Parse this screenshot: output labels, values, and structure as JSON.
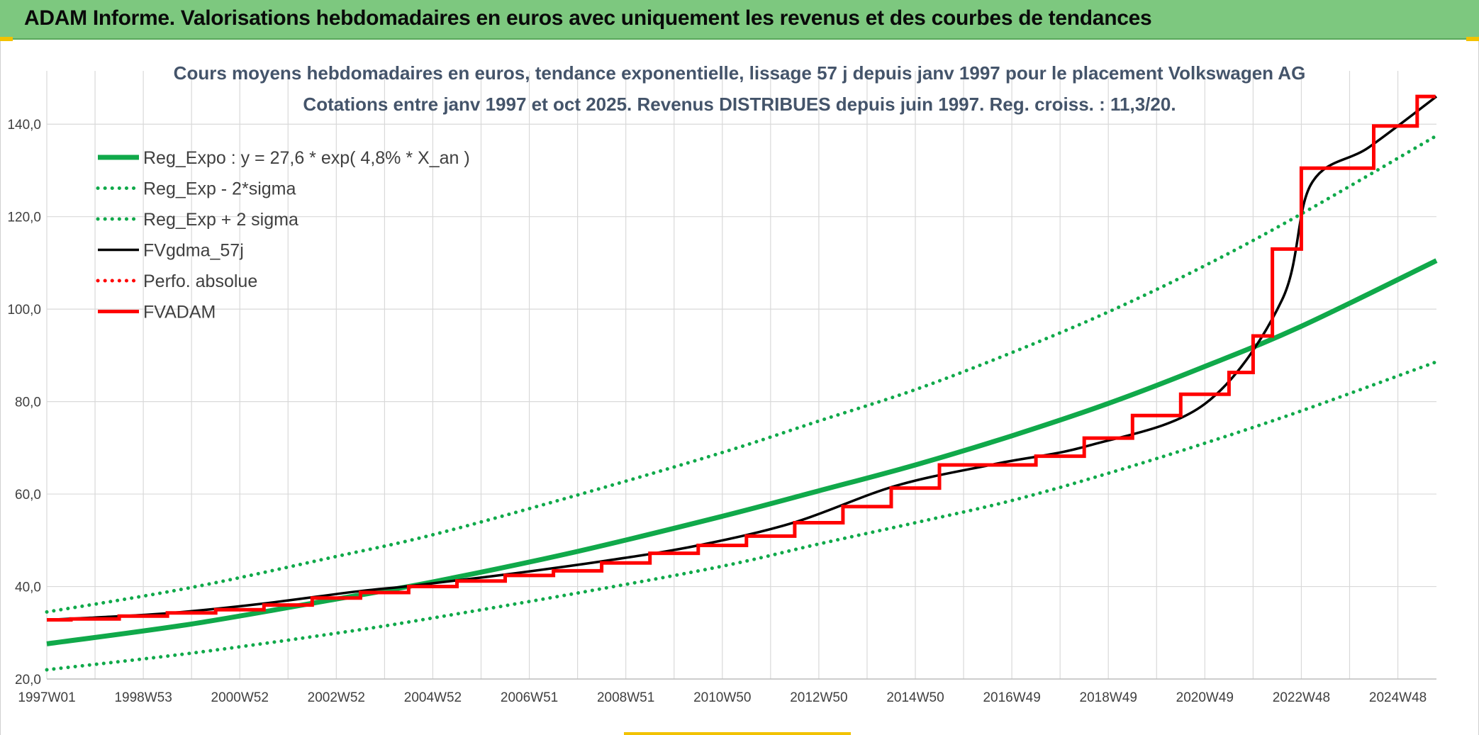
{
  "header": {
    "title": "ADAM Informe. Valorisations hebdomadaires en euros avec uniquement les revenus et des courbes de tendances"
  },
  "colors": {
    "banner": "#7dc87f",
    "green": "#10a94a",
    "black": "#000000",
    "red": "#ff0000",
    "grid": "#d9d9d9"
  },
  "chart_data": {
    "type": "line",
    "title": "Cours moyens hebdomadaires en euros, tendance exponentielle, lissage 57 j depuis janv 1997 pour le placement Volkswagen AG",
    "subtitle": "Cotations entre janv 1997 et oct 2025. Revenus DISTRIBUES depuis juin 1997. Reg. croiss. : 11,3/20.",
    "xlabel": "",
    "ylabel": "",
    "ylim": [
      20,
      150
    ],
    "xlim": [
      1997.0,
      2025.8
    ],
    "grid": true,
    "legend_position": "top-left",
    "y_ticks": [
      "20,0",
      "40,0",
      "60,0",
      "80,0",
      "100,0",
      "120,0",
      "140,0"
    ],
    "x_tick_labels": [
      "1997W01",
      "1998W53",
      "2000W52",
      "2002W52",
      "2004W52",
      "2006W51",
      "2008W51",
      "2010W50",
      "2012W50",
      "2014W50",
      "2016W49",
      "2018W49",
      "2020W49",
      "2022W48",
      "2024W48"
    ],
    "x_tick_years": [
      1997.0,
      1999.0,
      2001.0,
      2003.0,
      2005.0,
      2007.0,
      2009.0,
      2011.0,
      2013.0,
      2015.0,
      2017.0,
      2019.0,
      2021.0,
      2023.0,
      2025.0
    ],
    "series": [
      {
        "name": "Reg_Expo : y = 27,6 * exp( 4,8% *  X_an )",
        "style": "solid-thick",
        "color": "#10a94a",
        "x": [
          1997.0,
          2000.0,
          2003.0,
          2005.0,
          2008.0,
          2011.0,
          2013.0,
          2015.0,
          2017.0,
          2019.0,
          2021.0,
          2023.0,
          2025.8
        ],
        "values": [
          27.6,
          31.9,
          37.3,
          41.0,
          47.6,
          55.2,
          60.7,
          66.3,
          72.6,
          79.6,
          87.6,
          96.3,
          110.5
        ]
      },
      {
        "name": "Reg_Exp - 2*sigma",
        "style": "dotted",
        "color": "#10a94a",
        "x": [
          1997.0,
          2000.0,
          2003.0,
          2005.0,
          2008.0,
          2011.0,
          2013.0,
          2015.0,
          2017.0,
          2019.0,
          2021.0,
          2023.0,
          2025.8
        ],
        "values": [
          22.0,
          25.6,
          29.9,
          33.2,
          38.6,
          44.4,
          49.2,
          53.8,
          58.6,
          64.5,
          71.0,
          78.0,
          88.6
        ]
      },
      {
        "name": "Reg_Exp + 2 sigma",
        "style": "dotted",
        "color": "#10a94a",
        "x": [
          1997.0,
          2000.0,
          2003.0,
          2005.0,
          2008.0,
          2011.0,
          2013.0,
          2015.0,
          2017.0,
          2019.0,
          2021.0,
          2023.0,
          2025.8
        ],
        "values": [
          34.5,
          39.8,
          46.5,
          51.2,
          59.8,
          69.0,
          75.8,
          82.6,
          90.6,
          99.4,
          109.4,
          120.6,
          137.5
        ]
      },
      {
        "name": "FVgdma_57j",
        "style": "solid",
        "color": "#000000",
        "x": [
          1997.0,
          1998.0,
          1999.6,
          2001.4,
          2003.4,
          2004.6,
          2006.5,
          2008.6,
          2010.5,
          2012.5,
          2014.6,
          2016.7,
          2018.6,
          2021.0,
          2022.6,
          2023.2,
          2024.4,
          2025.8
        ],
        "values": [
          32.8,
          33.3,
          34.3,
          36.2,
          38.9,
          40.2,
          42.6,
          45.6,
          48.9,
          53.9,
          61.8,
          66.6,
          70.5,
          79.5,
          102.0,
          127.0,
          135.0,
          146.0
        ]
      },
      {
        "name": "Perfo. absolue",
        "style": "dotted",
        "color": "#ff0000",
        "x": [],
        "values": []
      },
      {
        "name": "FVADAM",
        "style": "step-thick",
        "color": "#ff0000",
        "x": [
          1997.0,
          1997.5,
          1998.5,
          1999.5,
          2000.5,
          2001.5,
          2002.5,
          2003.5,
          2004.5,
          2005.5,
          2006.5,
          2007.5,
          2008.5,
          2009.5,
          2010.5,
          2011.5,
          2012.5,
          2013.5,
          2014.5,
          2015.5,
          2017.5,
          2018.5,
          2019.5,
          2020.5,
          2021.5,
          2022.0,
          2022.4,
          2023.0,
          2024.5,
          2025.4
        ],
        "values": [
          32.8,
          33.0,
          33.6,
          34.3,
          35.0,
          36.0,
          37.5,
          38.7,
          40.0,
          41.2,
          42.4,
          43.4,
          45.1,
          47.2,
          48.9,
          50.9,
          53.8,
          57.3,
          61.3,
          66.3,
          68.2,
          72.1,
          77.0,
          81.6,
          86.3,
          94.2,
          113.0,
          130.5,
          139.6,
          146.0
        ]
      }
    ]
  }
}
